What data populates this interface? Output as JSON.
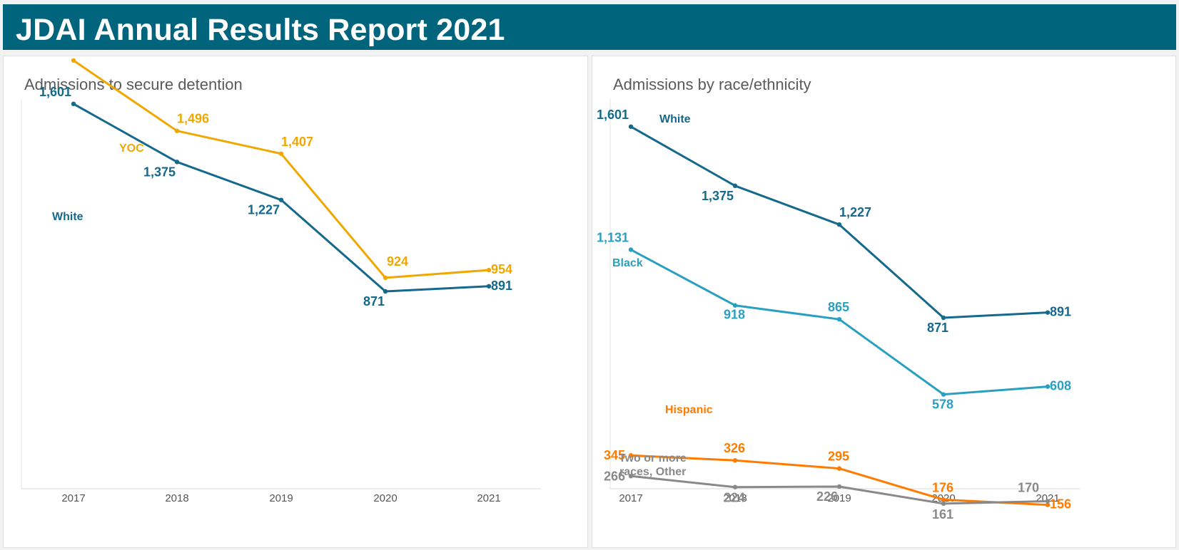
{
  "header": {
    "title": "JDAI Annual Results Report 2021"
  },
  "panels": {
    "left": {
      "title": "Admissions to secure detention"
    },
    "right": {
      "title": "Admissions by race/ethnicity"
    }
  },
  "colors": {
    "header_bg": "#00647d",
    "white_series": "#14698c",
    "yoc_series": "#f0a800",
    "black_series": "#2aa0c0",
    "hispanic_series": "#ff7b00",
    "other_series": "#898989"
  },
  "chart_data": [
    {
      "type": "line",
      "title": "Admissions to secure detention",
      "x": [
        "2017",
        "2018",
        "2019",
        "2020",
        "2021"
      ],
      "ylim": [
        0,
        1850
      ],
      "grid": false,
      "series": [
        {
          "name": "YOC",
          "color": "#f0a800",
          "values": [
            1770,
            1496,
            1407,
            924,
            954
          ]
        },
        {
          "name": "White",
          "color": "#14698c",
          "values": [
            1601,
            1375,
            1227,
            871,
            891
          ]
        }
      ]
    },
    {
      "type": "line",
      "title": "Admissions by race/ethnicity",
      "x": [
        "2017",
        "2018",
        "2019",
        "2020",
        "2021"
      ],
      "ylim": [
        0,
        1650
      ],
      "grid": false,
      "series": [
        {
          "name": "White",
          "color": "#14698c",
          "values": [
            1601,
            1375,
            1227,
            871,
            891
          ]
        },
        {
          "name": "Black",
          "color": "#2aa0c0",
          "values": [
            1131,
            918,
            865,
            578,
            608
          ]
        },
        {
          "name": "Hispanic",
          "color": "#ff7b00",
          "values": [
            345,
            326,
            295,
            176,
            156
          ]
        },
        {
          "name": "Two or more races, Other",
          "color": "#898989",
          "values": [
            266,
            224,
            226,
            161,
            170
          ]
        }
      ]
    }
  ]
}
